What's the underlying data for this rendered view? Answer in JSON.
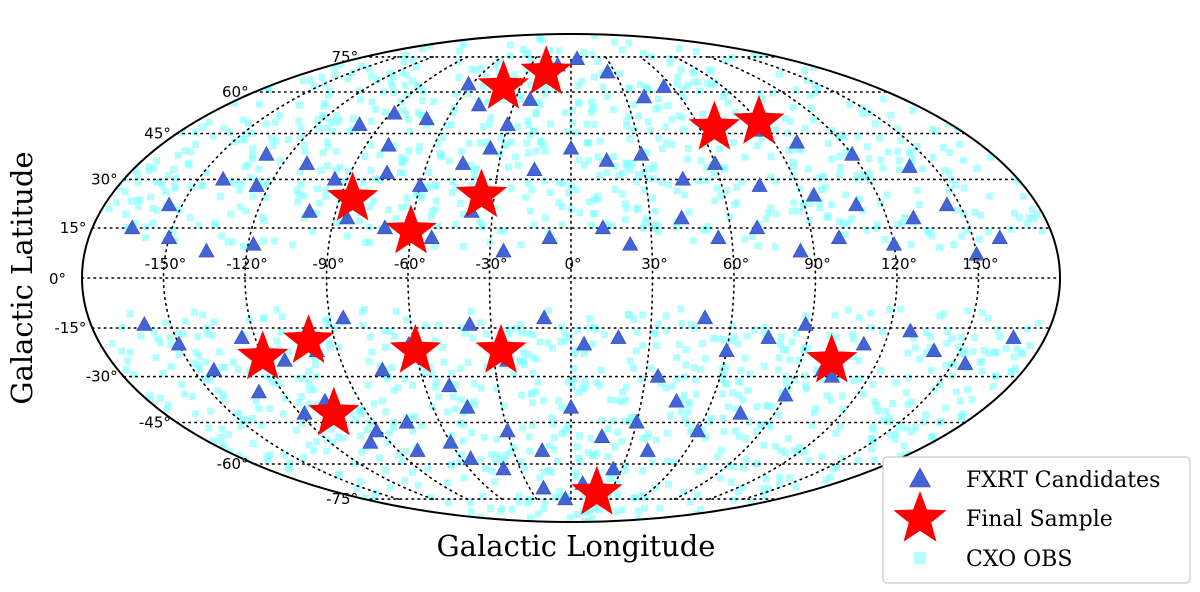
{
  "chart_data": {
    "type": "scatter",
    "projection": "mollweide",
    "xlabel": "Galactic Longitude",
    "ylabel": "Galactic Latitude",
    "xlim": [
      -180,
      180
    ],
    "ylim": [
      -90,
      90
    ],
    "grid": true,
    "legend_position": "lower-right",
    "x_ticks": [
      {
        "value": -150,
        "label": "-150°"
      },
      {
        "value": -120,
        "label": "-120°"
      },
      {
        "value": -90,
        "label": "-90°"
      },
      {
        "value": -60,
        "label": "-60°"
      },
      {
        "value": -30,
        "label": "-30°"
      },
      {
        "value": 0,
        "label": "0°"
      },
      {
        "value": 30,
        "label": "30°"
      },
      {
        "value": 60,
        "label": "60°"
      },
      {
        "value": 90,
        "label": "90°"
      },
      {
        "value": 120,
        "label": "120°"
      },
      {
        "value": 150,
        "label": "150°"
      }
    ],
    "y_ticks": [
      {
        "value": 75,
        "label": "75°"
      },
      {
        "value": 60,
        "label": "60°"
      },
      {
        "value": 45,
        "label": "45°"
      },
      {
        "value": 30,
        "label": "30°"
      },
      {
        "value": 15,
        "label": "15°"
      },
      {
        "value": 0,
        "label": "0°"
      },
      {
        "value": -15,
        "label": "-15°"
      },
      {
        "value": -30,
        "label": "-30°"
      },
      {
        "value": -45,
        "label": "-45°"
      },
      {
        "value": -60,
        "label": "-60°"
      },
      {
        "value": -75,
        "label": "-75°"
      }
    ],
    "series": [
      {
        "name": "CXO OBS",
        "marker": "square",
        "color": "#7fffff",
        "count": 1500,
        "note": "dense background of Chandra observation pointings avoiding |b| < ~10 deg"
      },
      {
        "name": "FXRT Candidates",
        "marker": "triangle",
        "color": "#4463d6",
        "points": [
          [
            -100,
            48
          ],
          [
            -88,
            52
          ],
          [
            -80,
            41
          ],
          [
            -70,
            50
          ],
          [
            -62,
            63
          ],
          [
            -48,
            55
          ],
          [
            -30,
            48
          ],
          [
            -22,
            57
          ],
          [
            -10,
            71
          ],
          [
            5,
            74
          ],
          [
            25,
            68
          ],
          [
            40,
            58
          ],
          [
            55,
            62
          ],
          [
            70,
            50
          ],
          [
            85,
            46
          ],
          [
            100,
            42
          ],
          [
            120,
            38
          ],
          [
            140,
            34
          ],
          [
            -130,
            38
          ],
          [
            -140,
            30
          ],
          [
            -155,
            22
          ],
          [
            -165,
            15
          ],
          [
            -125,
            28
          ],
          [
            -110,
            35
          ],
          [
            -95,
            30
          ],
          [
            -75,
            32
          ],
          [
            -60,
            28
          ],
          [
            -45,
            35
          ],
          [
            -35,
            40
          ],
          [
            -15,
            33
          ],
          [
            0,
            40
          ],
          [
            15,
            36
          ],
          [
            30,
            38
          ],
          [
            45,
            30
          ],
          [
            60,
            35
          ],
          [
            75,
            28
          ],
          [
            95,
            25
          ],
          [
            110,
            22
          ],
          [
            130,
            18
          ],
          [
            145,
            22
          ],
          [
            160,
            12
          ],
          [
            -150,
            12
          ],
          [
            -135,
            8
          ],
          [
            -118,
            10
          ],
          [
            -100,
            20
          ],
          [
            -85,
            18
          ],
          [
            -70,
            15
          ],
          [
            -52,
            12
          ],
          [
            -38,
            20
          ],
          [
            -25,
            8
          ],
          [
            -8,
            12
          ],
          [
            12,
            15
          ],
          [
            22,
            10
          ],
          [
            42,
            18
          ],
          [
            55,
            12
          ],
          [
            70,
            15
          ],
          [
            85,
            8
          ],
          [
            100,
            12
          ],
          [
            120,
            10
          ],
          [
            150,
            7
          ],
          [
            -160,
            -14
          ],
          [
            -150,
            -20
          ],
          [
            -142,
            -28
          ],
          [
            -125,
            -18
          ],
          [
            -112,
            -25
          ],
          [
            -98,
            -22
          ],
          [
            -85,
            -12
          ],
          [
            -75,
            -28
          ],
          [
            -62,
            -20
          ],
          [
            -50,
            -33
          ],
          [
            -38,
            -14
          ],
          [
            -25,
            -25
          ],
          [
            -10,
            -12
          ],
          [
            5,
            -20
          ],
          [
            18,
            -18
          ],
          [
            35,
            -30
          ],
          [
            50,
            -12
          ],
          [
            60,
            -22
          ],
          [
            75,
            -18
          ],
          [
            88,
            -14
          ],
          [
            100,
            -28
          ],
          [
            112,
            -20
          ],
          [
            128,
            -16
          ],
          [
            140,
            -22
          ],
          [
            155,
            -26
          ],
          [
            168,
            -18
          ],
          [
            -130,
            -35
          ],
          [
            -118,
            -42
          ],
          [
            -105,
            -38
          ],
          [
            -92,
            -48
          ],
          [
            -75,
            -45
          ],
          [
            -60,
            -52
          ],
          [
            -45,
            -40
          ],
          [
            -30,
            -48
          ],
          [
            -15,
            -55
          ],
          [
            0,
            -40
          ],
          [
            15,
            -50
          ],
          [
            30,
            -45
          ],
          [
            45,
            -38
          ],
          [
            60,
            -48
          ],
          [
            75,
            -42
          ],
          [
            90,
            -36
          ],
          [
            105,
            -30
          ],
          [
            -40,
            -62
          ],
          [
            -20,
            -70
          ],
          [
            -5,
            -75
          ],
          [
            8,
            -68
          ],
          [
            25,
            -62
          ],
          [
            40,
            -55
          ],
          [
            -55,
            -58
          ],
          [
            -80,
            -55
          ],
          [
            -100,
            -52
          ]
        ]
      },
      {
        "name": "Final Sample",
        "marker": "star",
        "color": "#ff0000",
        "points": [
          [
            -40,
            62
          ],
          [
            -17,
            68
          ],
          [
            67,
            47
          ],
          [
            90,
            49
          ],
          [
            -85,
            24
          ],
          [
            -35,
            25
          ],
          [
            -60,
            14
          ],
          [
            -120,
            -24
          ],
          [
            -100,
            -19
          ],
          [
            -60,
            -22
          ],
          [
            -27,
            -22
          ],
          [
            102,
            -25
          ],
          [
            -105,
            -42
          ],
          [
            20,
            -72
          ]
        ]
      }
    ]
  }
}
